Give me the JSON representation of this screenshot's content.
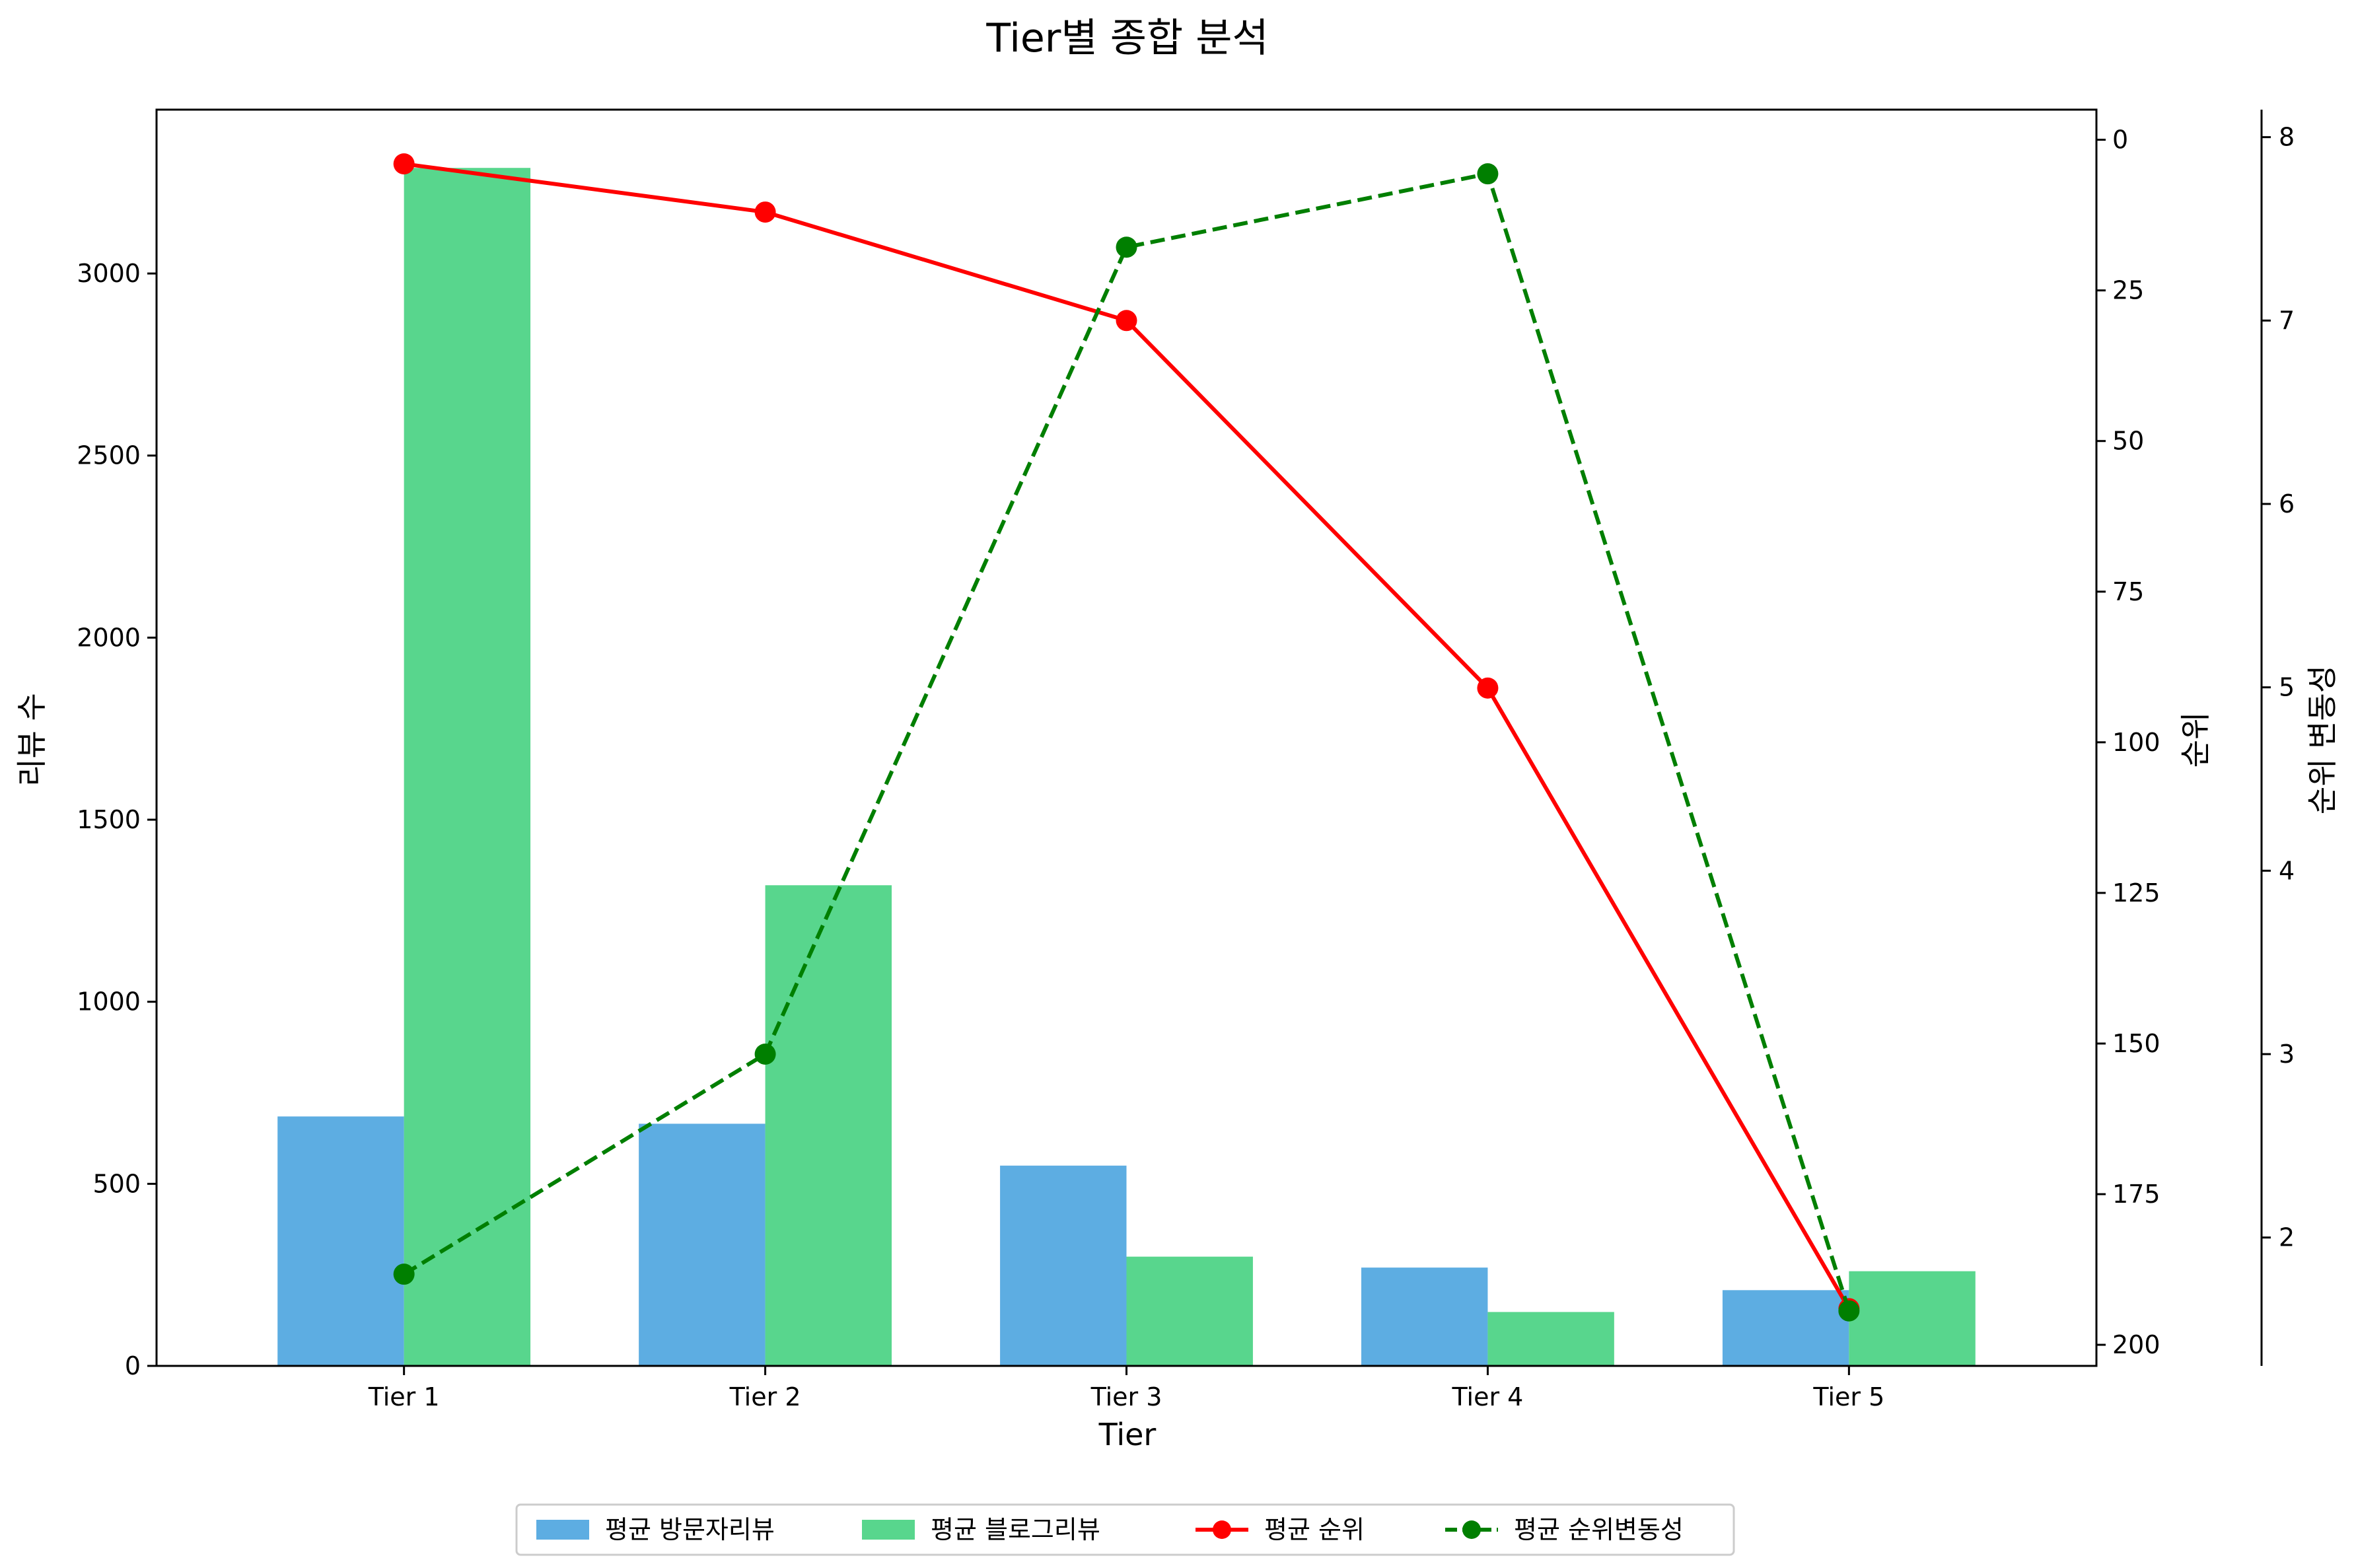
{
  "chart_data": {
    "type": "bar",
    "title": "Tier별 종합 분석",
    "xlabel": "Tier",
    "ylabel": "리뷰 수",
    "ylabel_right": "순위",
    "ylabel_right2": "순위 변동성",
    "categories": [
      "Tier 1",
      "Tier 2",
      "Tier 3",
      "Tier 4",
      "Tier 5"
    ],
    "series": [
      {
        "name": "평균 방문자리뷰",
        "type": "bar",
        "axis": "left",
        "color": "#5DADE2",
        "values": [
          685,
          665,
          550,
          270,
          208
        ]
      },
      {
        "name": "평균 블로그리뷰",
        "type": "bar",
        "axis": "left",
        "color": "#58D68D",
        "values": [
          3290,
          1320,
          300,
          148,
          260
        ]
      },
      {
        "name": "평균 순위",
        "type": "line",
        "axis": "right",
        "color": "#FF0000",
        "style": "solid",
        "values": [
          4,
          12,
          30,
          91,
          194
        ]
      },
      {
        "name": "평균 순위변동성",
        "type": "line",
        "axis": "right2",
        "color": "#007F00",
        "style": "dashed",
        "values": [
          1.8,
          3.0,
          7.4,
          7.8,
          1.6
        ]
      }
    ],
    "ylim": [
      0,
      3450
    ],
    "yticks": [
      "0",
      "500",
      "1000",
      "1500",
      "2000",
      "2500",
      "3000"
    ],
    "ylim_right": [
      203.5,
      -5
    ],
    "yticks_right": [
      "0",
      "25",
      "50",
      "75",
      "100",
      "125",
      "150",
      "175",
      "200"
    ],
    "ylim_right2": [
      1.3,
      8.15
    ],
    "yticks_right2": [
      "2",
      "3",
      "4",
      "5",
      "6",
      "7",
      "8"
    ],
    "grid": false,
    "legend_placement": "bottom-center"
  }
}
